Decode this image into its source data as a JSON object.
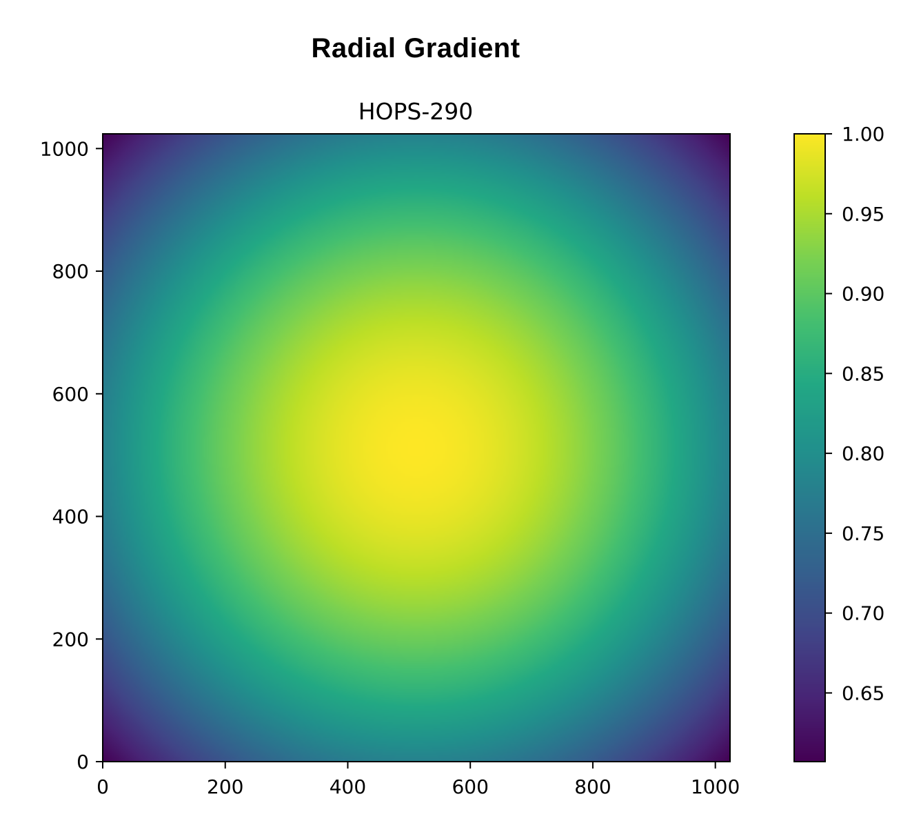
{
  "figure": {
    "title": "Radial Gradient"
  },
  "chart_data": {
    "type": "heatmap",
    "title": "HOPS-290",
    "xlabel": "",
    "ylabel": "",
    "xlim": [
      0,
      1024
    ],
    "ylim": [
      0,
      1024
    ],
    "origin": "lower",
    "xticks": [
      0,
      200,
      400,
      600,
      800,
      1000
    ],
    "yticks": [
      0,
      200,
      400,
      600,
      800,
      1000
    ],
    "xtick_labels": [
      "0",
      "200",
      "400",
      "600",
      "800",
      "1000"
    ],
    "ytick_labels": [
      "0",
      "200",
      "400",
      "600",
      "800",
      "1000"
    ],
    "center": [
      512,
      512
    ],
    "value_range": [
      0.607,
      1.0
    ],
    "colormap": "viridis",
    "colorbar": {
      "ticks": [
        0.65,
        0.7,
        0.75,
        0.8,
        0.85,
        0.9,
        0.95,
        1.0
      ],
      "tick_labels": [
        "0.65",
        "0.70",
        "0.75",
        "0.80",
        "0.85",
        "0.90",
        "0.95",
        "1.00"
      ],
      "range": [
        0.607,
        1.0
      ]
    },
    "grid": false
  }
}
